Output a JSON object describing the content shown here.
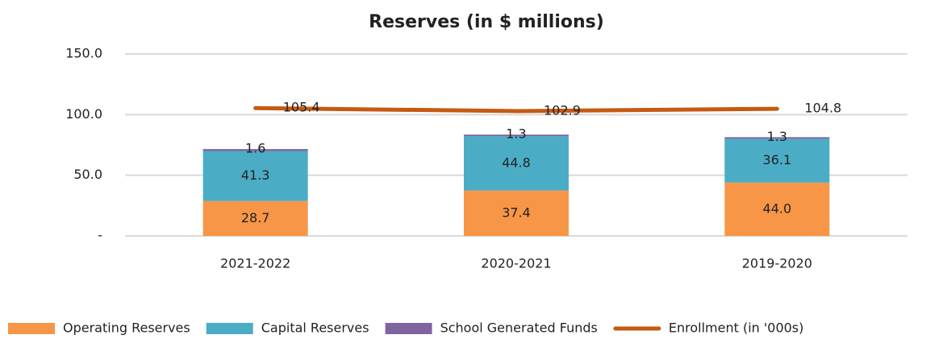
{
  "chart_data": {
    "type": "bar",
    "stacked": true,
    "title": "Reserves (in $ millions)",
    "categories": [
      "2021-2022",
      "2020-2021",
      "2019-2020"
    ],
    "series": [
      {
        "name": "Operating Reserves",
        "color": "#f79646",
        "values": [
          28.7,
          37.4,
          44
        ],
        "value_labels": [
          "28.7",
          "37.4",
          "44.0"
        ]
      },
      {
        "name": "Capital Reserves",
        "color": "#4bacc6",
        "values": [
          41.3,
          44.8,
          36.1
        ]
      },
      {
        "name": "School Generated Funds",
        "color": "#8064a2",
        "values": [
          1.6,
          1.3,
          1.3
        ]
      },
      {
        "name": "Enrollment (in '000s)",
        "type": "line",
        "color": "#c55a11",
        "values": [
          105.4,
          102.9,
          104.8
        ]
      }
    ],
    "ylim": [
      0,
      150
    ],
    "yticks": [
      {
        "value": 0,
        "label": "-"
      },
      {
        "value": 50,
        "label": "50.0"
      },
      {
        "value": 100,
        "label": "100.0"
      },
      {
        "value": 150,
        "label": "150.0"
      }
    ],
    "grid": true,
    "legend": "bottom"
  }
}
